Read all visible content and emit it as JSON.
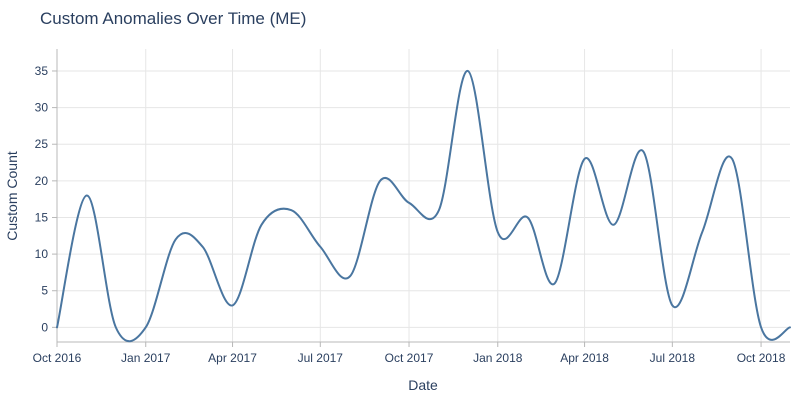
{
  "chart_data": {
    "type": "line",
    "title": "Custom Anomalies Over Time (ME)",
    "xlabel": "Date",
    "ylabel": "Custom Count",
    "x_ticks": [
      "Oct 2016",
      "Jan 2017",
      "Apr 2017",
      "Jul 2017",
      "Oct 2017",
      "Jan 2018",
      "Apr 2018",
      "Jul 2018",
      "Oct 2018"
    ],
    "y_ticks": [
      0,
      5,
      10,
      15,
      20,
      25,
      30,
      35
    ],
    "xlim": [
      "2016-10-01",
      "2018-10-31"
    ],
    "ylim": [
      -2,
      38
    ],
    "grid": true,
    "line_color": "#4a76a0",
    "series": [
      {
        "x": [
          "2016-10-01",
          "2016-11-01",
          "2016-12-01",
          "2017-01-01",
          "2017-02-01",
          "2017-03-01",
          "2017-04-01",
          "2017-05-01",
          "2017-06-01",
          "2017-07-01",
          "2017-08-01",
          "2017-09-01",
          "2017-10-01",
          "2017-11-01",
          "2017-12-01",
          "2018-01-01",
          "2018-02-01",
          "2018-03-01",
          "2018-04-01",
          "2018-05-01",
          "2018-06-01",
          "2018-07-01",
          "2018-08-01",
          "2018-09-01",
          "2018-10-01",
          "2018-10-31"
        ],
        "values": [
          0,
          18,
          0,
          0,
          12,
          11,
          3,
          14,
          16,
          11,
          7,
          20,
          17,
          16,
          35,
          13,
          15,
          6,
          23,
          14,
          24,
          3,
          13,
          23,
          0,
          0
        ]
      }
    ]
  }
}
